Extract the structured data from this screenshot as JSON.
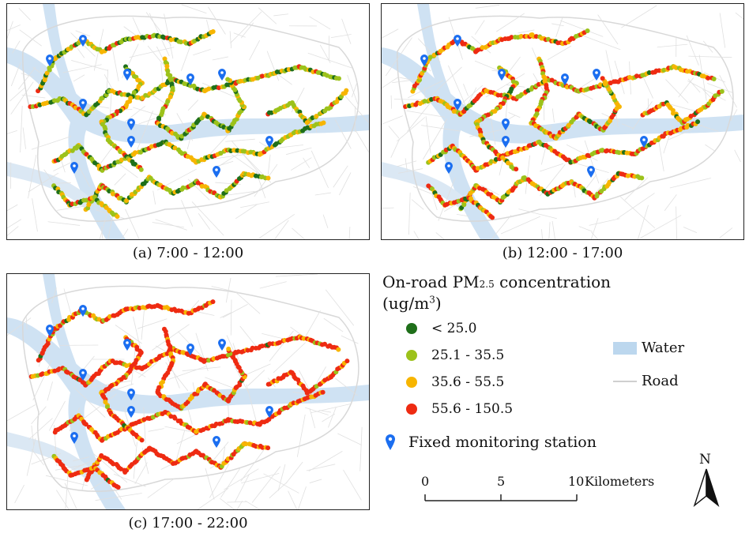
{
  "panels": [
    {
      "caption": "(a) 7:00 - 12:00"
    },
    {
      "caption": "(b) 12:00 - 17:00"
    },
    {
      "caption": "(c) 17:00 - 22:00"
    }
  ],
  "legend": {
    "title_main": "On-road PM",
    "title_sub": "2.5",
    "title_tail": " concentration",
    "unit_main": "(ug/m",
    "unit_sup": "3",
    "unit_tail": ")",
    "classes": [
      {
        "label": "< 25.0",
        "color": "#1f6f1a"
      },
      {
        "label": "25.1 - 35.5",
        "color": "#9cc21b"
      },
      {
        "label": "35.6 - 55.5",
        "color": "#f7b500"
      },
      {
        "label": "55.6 - 150.5",
        "color": "#ee2b12"
      }
    ],
    "water_label": "Water",
    "water_color": "#bcd7ee",
    "road_label": "Road",
    "road_color": "#cfcfcf",
    "station_label": "Fixed monitoring station",
    "station_color": "#1b6ef0"
  },
  "scalebar": {
    "ticks": [
      "0",
      "5",
      "10"
    ],
    "unit": "Kilometers"
  },
  "north": {
    "label": "N"
  }
}
